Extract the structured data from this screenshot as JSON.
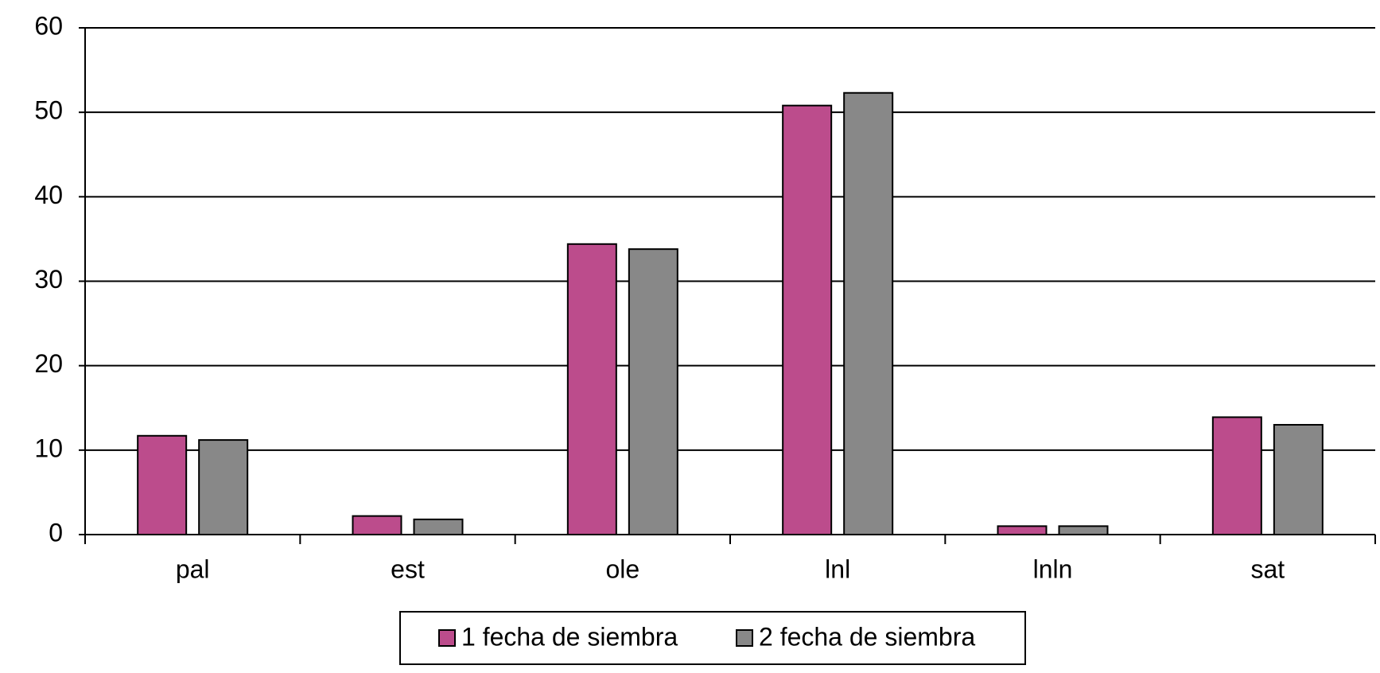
{
  "chart_data": {
    "type": "bar",
    "categories": [
      "pal",
      "est",
      "ole",
      "lnl",
      "lnln",
      "sat"
    ],
    "series": [
      {
        "name": "1 fecha de siembra",
        "color": "#bc4c8c",
        "values": [
          11.7,
          2.2,
          34.4,
          50.8,
          1.0,
          13.9
        ]
      },
      {
        "name": "2 fecha de siembra",
        "color": "#888888",
        "values": [
          11.2,
          1.8,
          33.8,
          52.3,
          1.0,
          13.0
        ]
      }
    ],
    "ylim": [
      0,
      60
    ],
    "yticks": [
      0,
      10,
      20,
      30,
      40,
      50,
      60
    ],
    "grid": true,
    "legend": "bottom"
  }
}
